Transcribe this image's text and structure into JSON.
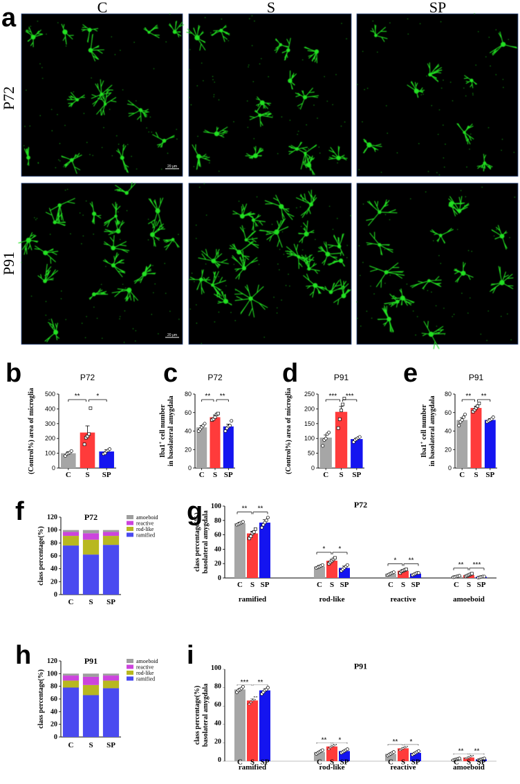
{
  "panel_letters": [
    "a",
    "b",
    "c",
    "d",
    "e",
    "f",
    "g",
    "h",
    "i"
  ],
  "image_panel": {
    "columns": [
      "C",
      "S",
      "SP"
    ],
    "rows": [
      "P72",
      "P91"
    ],
    "scale_bar_label": "20 μm"
  },
  "colors": {
    "C": "#a6a6a6",
    "S": "#ff3b3b",
    "SP": "#1414f0",
    "amoeboid": "#9e9e9e",
    "reactive": "#cc44dd",
    "rod-like": "#b8b820",
    "ramified": "#4a4af0",
    "micrograph_bg": "#000000",
    "micrograph_cell": "#22e022"
  },
  "chart_data": [
    {
      "id": "b",
      "type": "bar",
      "title": "P72",
      "ylabel": "(Control%) area of microglia",
      "categories": [
        "C",
        "S",
        "SP"
      ],
      "values": [
        100,
        240,
        112
      ],
      "errors": [
        10,
        45,
        12
      ],
      "points": [
        [
          82,
          95,
          100,
          105,
          115
        ],
        [
          160,
          205,
          215,
          230,
          405
        ],
        [
          95,
          100,
          115,
          120,
          128
        ]
      ],
      "ylim": [
        0,
        500
      ],
      "yticks": [
        0,
        100,
        200,
        300,
        400,
        500
      ],
      "significance": [
        {
          "pair": [
            "C",
            "S"
          ],
          "label": "**"
        },
        {
          "pair": [
            "S",
            "SP"
          ],
          "label": "*"
        }
      ]
    },
    {
      "id": "c",
      "type": "bar",
      "title": "P72",
      "ylabel_line1": "Iba1",
      "ylabel_sup": "+",
      "ylabel_line1_rest": " cell number",
      "ylabel_line2": "in basolateral amygdala",
      "categories": [
        "C",
        "S",
        "SP"
      ],
      "values": [
        44,
        55,
        45
      ],
      "errors": [
        2,
        2.5,
        2.5
      ],
      "points": [
        [
          40,
          42,
          44,
          46,
          48
        ],
        [
          52,
          53,
          55,
          58,
          59
        ],
        [
          40,
          43,
          45,
          46,
          51
        ]
      ],
      "ylim": [
        0,
        80
      ],
      "yticks": [
        0,
        20,
        40,
        60,
        80
      ],
      "significance": [
        {
          "pair": [
            "C",
            "S"
          ],
          "label": "**"
        },
        {
          "pair": [
            "S",
            "SP"
          ],
          "label": "**"
        }
      ]
    },
    {
      "id": "d",
      "type": "bar",
      "title": "P91",
      "ylabel": "(Control%) area of microglia",
      "categories": [
        "C",
        "S",
        "SP"
      ],
      "values": [
        103,
        190,
        98
      ],
      "errors": [
        9,
        18,
        4
      ],
      "points": [
        [
          75,
          95,
          100,
          115,
          120
        ],
        [
          135,
          165,
          195,
          215,
          235
        ],
        [
          88,
          95,
          98,
          102,
          105
        ]
      ],
      "ylim": [
        0,
        250
      ],
      "yticks": [
        0,
        50,
        100,
        150,
        200,
        250
      ],
      "significance": [
        {
          "pair": [
            "C",
            "S"
          ],
          "label": "***"
        },
        {
          "pair": [
            "S",
            "SP"
          ],
          "label": "***"
        }
      ]
    },
    {
      "id": "e",
      "type": "bar",
      "title": "P91",
      "ylabel_line1": "Iba1",
      "ylabel_sup": "+",
      "ylabel_line1_rest": " cell number",
      "ylabel_line2": "in basolateral amygdala",
      "categories": [
        "C",
        "S",
        "SP"
      ],
      "values": [
        52,
        65,
        52
      ],
      "errors": [
        2.5,
        2,
        1.5
      ],
      "points": [
        [
          46,
          50,
          52,
          55,
          58
        ],
        [
          61,
          63,
          65,
          67,
          70
        ],
        [
          50,
          51,
          52,
          53,
          55
        ]
      ],
      "ylim": [
        0,
        80
      ],
      "yticks": [
        0,
        20,
        40,
        60,
        80
      ],
      "significance": [
        {
          "pair": [
            "C",
            "S"
          ],
          "label": "**"
        },
        {
          "pair": [
            "S",
            "SP"
          ],
          "label": "**"
        }
      ]
    },
    {
      "id": "f",
      "type": "stacked-bar",
      "title": "P72",
      "ylabel": "class percentage(%)",
      "categories": [
        "C",
        "S",
        "SP"
      ],
      "series": [
        {
          "name": "ramified",
          "values": [
            76,
            62,
            77
          ]
        },
        {
          "name": "rod-like",
          "values": [
            15,
            23,
            14
          ]
        },
        {
          "name": "reactive",
          "values": [
            6,
            10,
            6
          ]
        },
        {
          "name": "amoeboid",
          "values": [
            3,
            5,
            3
          ]
        }
      ],
      "legend_order": [
        "amoeboid",
        "reactive",
        "rod-like",
        "ramified"
      ],
      "ylim": [
        0,
        120
      ],
      "yticks": [
        0,
        20,
        40,
        60,
        80,
        100,
        120
      ]
    },
    {
      "id": "g",
      "type": "grouped-bar",
      "title": "P72",
      "ylabel_line1": "class percentage(%)",
      "ylabel_line2": "basolateral amygdala",
      "groups": [
        "ramified",
        "rod-like",
        "reactive",
        "amoeboid"
      ],
      "categories": [
        "C",
        "S",
        "SP"
      ],
      "values": [
        [
          76,
          62,
          77
        ],
        [
          16,
          24,
          14
        ],
        [
          6,
          10,
          6
        ],
        [
          2,
          4,
          1.5
        ]
      ],
      "errors": [
        [
          1.5,
          3,
          4
        ],
        [
          1.5,
          2,
          2.5
        ],
        [
          1,
          1.5,
          1
        ],
        [
          0.5,
          1,
          0.5
        ]
      ],
      "points": [
        [
          [
            74,
            75,
            76,
            77,
            78
          ],
          [
            55,
            58,
            62,
            64,
            68
          ],
          [
            70,
            74,
            77,
            80,
            84
          ]
        ],
        [
          [
            14,
            15,
            16,
            17,
            18
          ],
          [
            20,
            22,
            24,
            26,
            28
          ],
          [
            10,
            12,
            14,
            16,
            18
          ]
        ],
        [
          [
            4,
            5,
            6,
            7,
            8
          ],
          [
            7,
            9,
            10,
            11,
            12
          ],
          [
            4,
            5,
            6,
            7,
            7
          ]
        ],
        [
          [
            1,
            1.5,
            2,
            2.5,
            3
          ],
          [
            2,
            3,
            4,
            5,
            6
          ],
          [
            0.5,
            1,
            1.5,
            2,
            2
          ]
        ]
      ],
      "ylim": [
        0,
        100
      ],
      "yticks": [
        0,
        20,
        40,
        60,
        80,
        100
      ],
      "significance": [
        [
          {
            "pair": [
              "C",
              "S"
            ],
            "label": "**"
          },
          {
            "pair": [
              "S",
              "SP"
            ],
            "label": "**"
          }
        ],
        [
          {
            "pair": [
              "C",
              "S"
            ],
            "label": "*"
          },
          {
            "pair": [
              "S",
              "SP"
            ],
            "label": "*"
          }
        ],
        [
          {
            "pair": [
              "C",
              "S"
            ],
            "label": "*"
          },
          {
            "pair": [
              "S",
              "SP"
            ],
            "label": "**"
          }
        ],
        [
          {
            "pair": [
              "C",
              "S"
            ],
            "label": "**"
          },
          {
            "pair": [
              "S",
              "SP"
            ],
            "label": "***"
          }
        ]
      ]
    },
    {
      "id": "h",
      "type": "stacked-bar",
      "title": "P91",
      "ylabel": "class percentage(%)",
      "categories": [
        "C",
        "S",
        "SP"
      ],
      "series": [
        {
          "name": "ramified",
          "values": [
            78,
            66,
            77
          ]
        },
        {
          "name": "rod-like",
          "values": [
            11,
            16,
            12
          ]
        },
        {
          "name": "reactive",
          "values": [
            8,
            13,
            8
          ]
        },
        {
          "name": "amoeboid",
          "values": [
            3,
            5,
            3
          ]
        }
      ],
      "legend_order": [
        "amoeboid",
        "reactive",
        "rod-like",
        "ramified"
      ],
      "ylim": [
        0,
        120
      ],
      "yticks": [
        0,
        20,
        40,
        60,
        80,
        100,
        120
      ]
    },
    {
      "id": "i",
      "type": "grouped-bar",
      "title": "P91",
      "ylabel_line1": "class percentage(%)",
      "ylabel_line2": "basolateral amygdala",
      "groups": [
        "ramified",
        "rod-like",
        "reactive",
        "amoeboid"
      ],
      "categories": [
        "C",
        "S",
        "SP"
      ],
      "values": [
        [
          78,
          66,
          77
        ],
        [
          10,
          16,
          11
        ],
        [
          8,
          14,
          9
        ],
        [
          2,
          4,
          2
        ]
      ],
      "errors": [
        [
          1.5,
          2,
          2
        ],
        [
          1,
          1.5,
          1
        ],
        [
          1,
          1,
          1
        ],
        [
          0.5,
          1,
          0.5
        ]
      ],
      "points": [
        [
          [
            75,
            77,
            78,
            79,
            81
          ],
          [
            62,
            64,
            66,
            67,
            70
          ],
          [
            73,
            75,
            77,
            78,
            80
          ]
        ],
        [
          [
            8,
            9,
            10,
            11,
            12
          ],
          [
            13,
            15,
            16,
            17,
            18
          ],
          [
            9,
            10,
            11,
            12,
            13
          ]
        ],
        [
          [
            6,
            7,
            8,
            9,
            10
          ],
          [
            12,
            13,
            14,
            15,
            16
          ],
          [
            7,
            8,
            9,
            10,
            11
          ]
        ],
        [
          [
            1,
            1.5,
            2,
            2.5,
            3
          ],
          [
            3,
            3.5,
            4,
            5,
            6
          ],
          [
            1,
            1.5,
            2,
            2.5,
            3
          ]
        ]
      ],
      "ylim": [
        0,
        100
      ],
      "yticks": [
        0,
        20,
        40,
        60,
        80,
        100
      ],
      "significance": [
        [
          {
            "pair": [
              "C",
              "S"
            ],
            "label": "***"
          },
          {
            "pair": [
              "S",
              "SP"
            ],
            "label": "**"
          }
        ],
        [
          {
            "pair": [
              "C",
              "S"
            ],
            "label": "**"
          },
          {
            "pair": [
              "S",
              "SP"
            ],
            "label": "*"
          }
        ],
        [
          {
            "pair": [
              "C",
              "S"
            ],
            "label": "**"
          },
          {
            "pair": [
              "S",
              "SP"
            ],
            "label": "*"
          }
        ],
        [
          {
            "pair": [
              "C",
              "S"
            ],
            "label": "**"
          },
          {
            "pair": [
              "S",
              "SP"
            ],
            "label": "**"
          }
        ]
      ]
    }
  ]
}
